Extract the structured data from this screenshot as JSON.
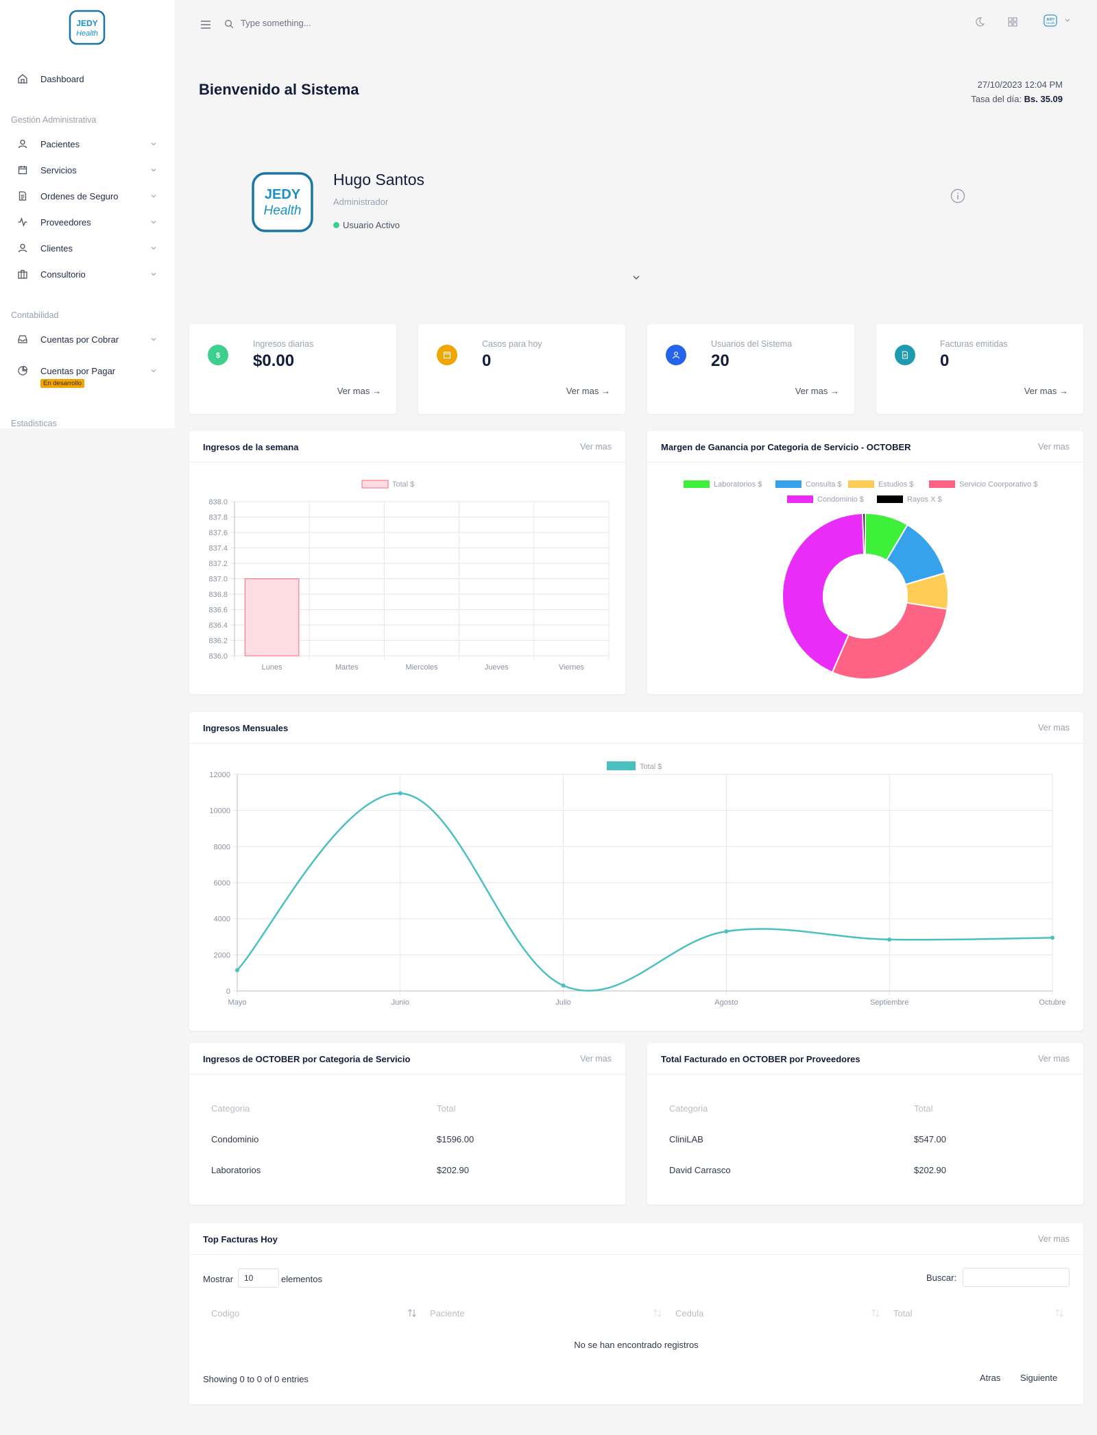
{
  "sidebar": {
    "logo_text_1": "JEDY",
    "logo_text_2": "Health",
    "dashboard": "Dashboard",
    "section_admin": "Gestión Administrativa",
    "items_admin": [
      "Pacientes",
      "Servicios",
      "Ordenes de Seguro",
      "Proveedores",
      "Clientes",
      "Consultorio"
    ],
    "section_contabilidad": "Contabilidad",
    "items_contabilidad": [
      "Cuentas por Cobrar",
      "Cuentas por Pagar"
    ],
    "badge": "En desarrollo",
    "section_estadisticas": "Estadisticas"
  },
  "topbar": {
    "search_placeholder": "Type something..."
  },
  "header": {
    "welcome": "Bienvenido al Sistema",
    "datetime": "27/10/2023 12:04 PM",
    "rate_label": "Tasa del día:",
    "rate_value": "Bs. 35.09"
  },
  "profile": {
    "name": "Hugo Santos",
    "role": "Administrador",
    "status": "Usuario Activo"
  },
  "stats": [
    {
      "label": "Ingresos diarias",
      "value": "$0.00",
      "more": "Ver mas",
      "color": "#3ecf8e",
      "icon": "dollar-icon"
    },
    {
      "label": "Casos para hoy",
      "value": "0",
      "more": "Ver mas",
      "color": "#f0a500",
      "icon": "calendar-icon"
    },
    {
      "label": "Usuarios del Sistema",
      "value": "20",
      "more": "Ver mas",
      "color": "#2463eb",
      "icon": "user-icon"
    },
    {
      "label": "Facturas emitidas",
      "value": "0",
      "more": "Ver mas",
      "color": "#1f9bb0",
      "icon": "file-icon"
    }
  ],
  "panels": {
    "weekly_title": "Ingresos de la semana",
    "margin_title": "Margen de Ganancia por Categoria de Servicio - OCTOBER",
    "monthly_title": "Ingresos Mensuales",
    "cat_title": "Ingresos de OCTOBER por Categoria de Servicio",
    "prov_title": "Total Facturado en OCTOBER por Proveedores",
    "top_title": "Top Facturas Hoy",
    "more": "Ver mas"
  },
  "chart_data": [
    {
      "type": "bar",
      "categories": [
        "Lunes",
        "Martes",
        "Miercoles",
        "Jueves",
        "Viernes"
      ],
      "series": [
        {
          "name": "Total $",
          "values": [
            837.0,
            null,
            null,
            null,
            null
          ]
        }
      ],
      "ylim": [
        836.0,
        838.0
      ],
      "yticks": [
        "838.0",
        "837.8",
        "837.6",
        "837.4",
        "837.2",
        "837.0",
        "836.8",
        "836.6",
        "836.4",
        "836.2",
        "836.0"
      ],
      "colors": {
        "fill": "#ffdde3",
        "stroke": "#ff6384"
      },
      "grid": true,
      "legend": "top"
    },
    {
      "type": "pie",
      "labels": [
        "Laboratorios $",
        "Consulta $",
        "Estudios $",
        "Servicio Coorporativo $",
        "Condominio $",
        "Rayos X $"
      ],
      "values": [
        8.5,
        12,
        7,
        29,
        43,
        0.5
      ],
      "colors": [
        "#3ef03a",
        "#36a2eb",
        "#ffcd56",
        "#ff6384",
        "#e92cf8",
        "#000000"
      ],
      "legend": "top"
    },
    {
      "type": "line",
      "categories": [
        "Mayo",
        "Junio",
        "Julio",
        "Agosto",
        "Septiembre",
        "Octubre"
      ],
      "series": [
        {
          "name": "Total $",
          "values": [
            1150,
            10950,
            300,
            3300,
            2850,
            2950
          ]
        }
      ],
      "ylim": [
        0,
        12000
      ],
      "yticks": [
        "12000",
        "10000",
        "8000",
        "6000",
        "4000",
        "2000",
        "0"
      ],
      "colors": {
        "line": "#4bc0c0"
      },
      "grid": true,
      "legend": "top"
    }
  ],
  "cat_table": {
    "headers": [
      "Categoria",
      "Total"
    ],
    "rows": [
      [
        "Condominio",
        "$1596.00"
      ],
      [
        "Laboratorios",
        "$202.90"
      ]
    ]
  },
  "prov_table": {
    "headers": [
      "Categoria",
      "Total"
    ],
    "rows": [
      [
        "CliniLAB",
        "$547.00"
      ],
      [
        "David Carrasco",
        "$202.90"
      ]
    ]
  },
  "top_table": {
    "show_label": "Mostrar",
    "show_value": "10",
    "elements_label": "elementos",
    "search_label": "Buscar:",
    "headers": [
      "Codigo",
      "Paciente",
      "Cedula",
      "Total"
    ],
    "empty": "No se han encontrado registros",
    "info": "Showing 0 to 0 of 0 entries",
    "prev": "Atras",
    "next": "Siguiente"
  }
}
